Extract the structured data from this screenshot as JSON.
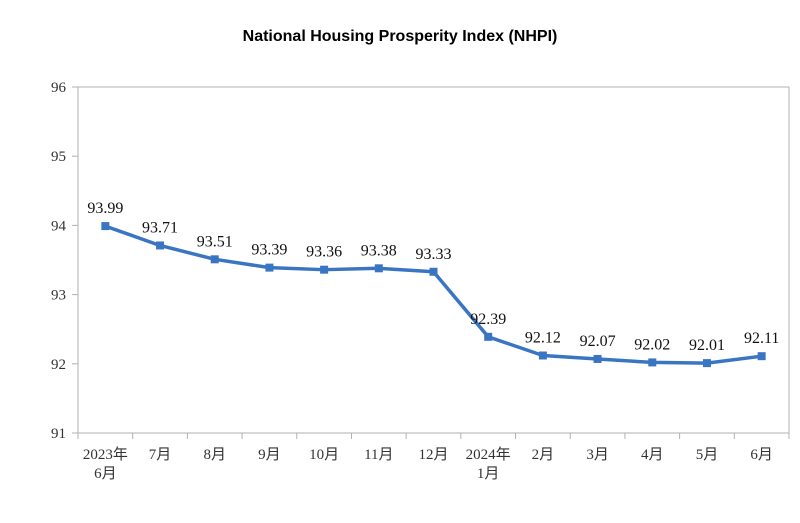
{
  "chart_data": {
    "type": "line",
    "title": "National Housing Prosperity Index (NHPI)",
    "xlabel": "",
    "ylabel": "",
    "ylim": [
      91,
      96
    ],
    "yticks": [
      "91",
      "92",
      "93",
      "94",
      "95",
      "96"
    ],
    "categories": [
      [
        "2023年",
        "6月"
      ],
      [
        "7月"
      ],
      [
        "8月"
      ],
      [
        "9月"
      ],
      [
        "10月"
      ],
      [
        "11月"
      ],
      [
        "12月"
      ],
      [
        "2024年",
        "1月"
      ],
      [
        "2月"
      ],
      [
        "3月"
      ],
      [
        "4月"
      ],
      [
        "5月"
      ],
      [
        "6月"
      ]
    ],
    "values": [
      93.99,
      93.71,
      93.51,
      93.39,
      93.36,
      93.38,
      93.33,
      92.39,
      92.12,
      92.07,
      92.02,
      92.01,
      92.11
    ],
    "value_labels": [
      "93.99",
      "93.71",
      "93.51",
      "93.39",
      "93.36",
      "93.38",
      "93.33",
      "92.39",
      "92.12",
      "92.07",
      "92.02",
      "92.01",
      "92.11"
    ],
    "line_color": "#3a75c4",
    "axis_color": "#b0b0b0",
    "grid": false
  }
}
